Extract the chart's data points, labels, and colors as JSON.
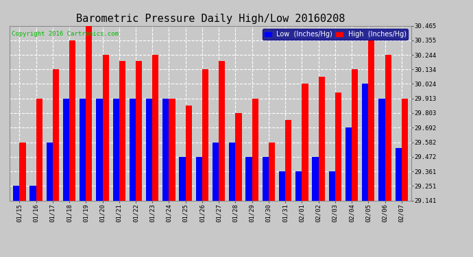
{
  "title": "Barometric Pressure Daily High/Low 20160208",
  "copyright": "Copyright 2016 Cartronics.com",
  "dates": [
    "01/15",
    "01/16",
    "01/17",
    "01/18",
    "01/19",
    "01/20",
    "01/21",
    "01/22",
    "01/23",
    "01/24",
    "01/25",
    "01/26",
    "01/27",
    "01/28",
    "01/29",
    "01/30",
    "01/31",
    "02/01",
    "02/02",
    "02/03",
    "02/04",
    "02/05",
    "02/06",
    "02/07"
  ],
  "low_values": [
    29.251,
    29.251,
    29.582,
    29.913,
    29.913,
    29.913,
    29.913,
    29.913,
    29.913,
    29.913,
    29.472,
    29.472,
    29.582,
    29.582,
    29.472,
    29.472,
    29.361,
    29.361,
    29.472,
    29.361,
    29.692,
    30.024,
    29.913,
    29.54
  ],
  "high_values": [
    29.582,
    29.913,
    30.134,
    30.355,
    30.465,
    30.244,
    30.2,
    30.2,
    30.244,
    29.913,
    29.86,
    30.134,
    30.2,
    29.803,
    29.913,
    29.582,
    29.75,
    30.024,
    30.08,
    29.96,
    30.134,
    30.355,
    30.244,
    29.913
  ],
  "ylim": [
    29.141,
    30.465
  ],
  "yticks": [
    29.141,
    29.251,
    29.361,
    29.472,
    29.582,
    29.692,
    29.803,
    29.913,
    30.024,
    30.134,
    30.244,
    30.355,
    30.465
  ],
  "low_color": "#0000ff",
  "high_color": "#ff0000",
  "bg_color": "#c8c8c8",
  "legend_low_label": "Low  (Inches/Hg)",
  "legend_high_label": "High  (Inches/Hg)",
  "bar_width": 0.38,
  "title_fontsize": 11,
  "copyright_fontsize": 6.5,
  "tick_fontsize": 6.5,
  "legend_fontsize": 7
}
